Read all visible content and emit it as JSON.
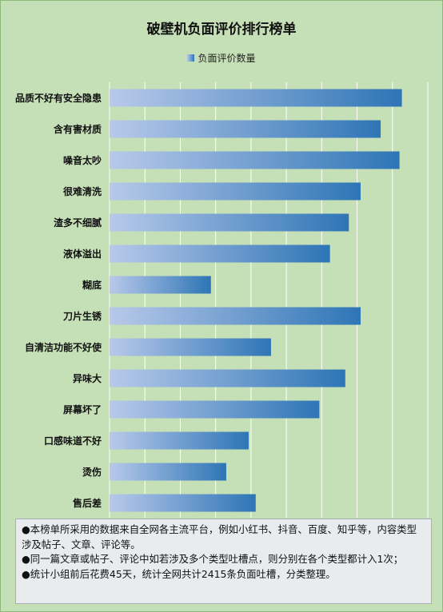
{
  "chart_data": {
    "type": "bar",
    "orientation": "horizontal",
    "title": "破壁机负面评价排行榜单",
    "legend": {
      "position": "top",
      "entries": [
        "负面评价数量"
      ]
    },
    "categories": [
      "品质不好有安全隐患",
      "含有害材质",
      "噪音太吵",
      "很难清洗",
      "渣多不细腻",
      "液体溢出",
      "糊底",
      "刀片生锈",
      "自清洁功能不好使",
      "异味大",
      "屏幕坏了",
      "口感味道不好",
      "烫伤",
      "售后差"
    ],
    "series": [
      {
        "name": "负面评价数量",
        "values": [
          248,
          230,
          246,
          213,
          203,
          187,
          86,
          213,
          137,
          200,
          178,
          118,
          99,
          124
        ]
      }
    ],
    "xlim": [
      0,
      270
    ],
    "grid": true,
    "colors": {
      "bar_start": "#b8c9ea",
      "bar_end": "#2e75b6",
      "grid": "#ffffff",
      "background": "#c5dfb6"
    }
  },
  "notes": [
    "●本榜单所采用的数据来自全网各主流平台，例如小红书、抖音、百度、知乎等，内容类型涉及帖子、文章、评论等。",
    "●同一篇文章或帖子、评论中如若涉及多个类型吐槽点，则分别在各个类型都计入1次；",
    "●统计小组前后花费45天，统计全网共计2415条负面吐槽，分类整理。"
  ]
}
